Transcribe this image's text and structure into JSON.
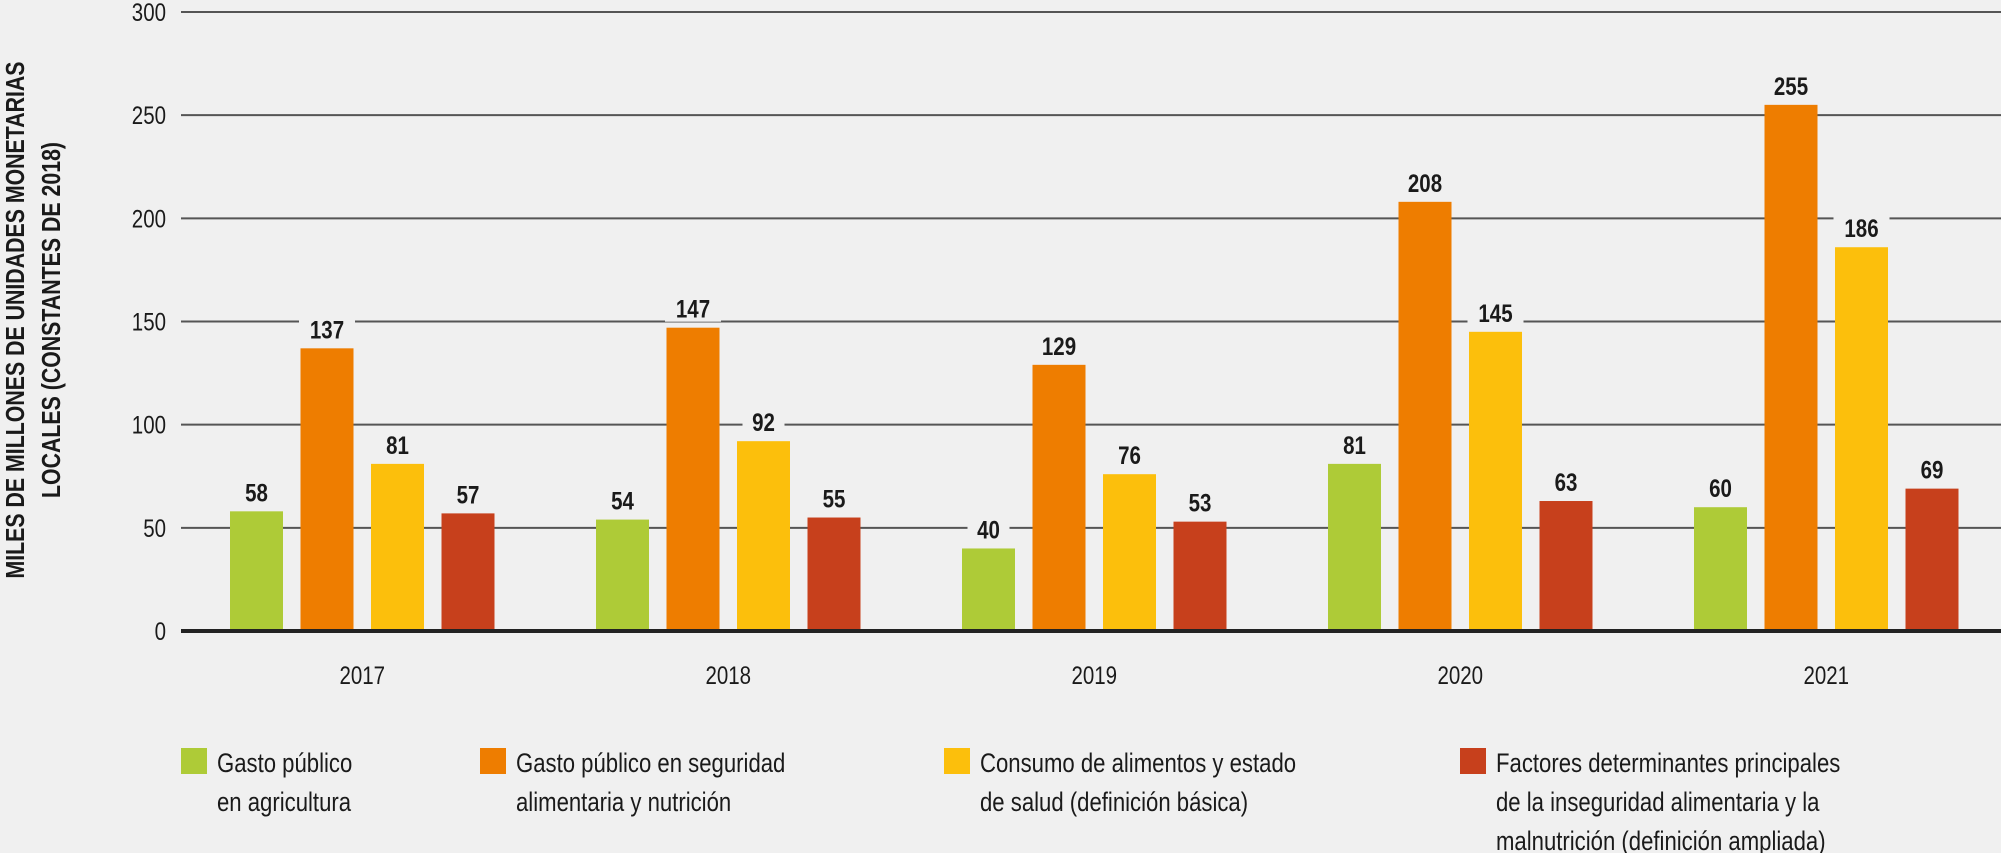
{
  "chart_data": {
    "type": "bar",
    "title": "",
    "xlabel": "",
    "ylabel_lines": [
      "MILES DE MILLONES DE UNIDADES MONETARIAS",
      "LOCALES (CONSTANTES DE 2018)"
    ],
    "ylabel": "MILES DE MILLONES DE UNIDADES MONETARIAS LOCALES (CONSTANTES DE 2018)",
    "ylim": [
      0,
      300
    ],
    "yticks": [
      0,
      50,
      100,
      150,
      200,
      250,
      300
    ],
    "grid": true,
    "legend_position": "bottom",
    "categories": [
      "2017",
      "2018",
      "2019",
      "2020",
      "2021"
    ],
    "series": [
      {
        "name": "Gasto público en agricultura",
        "legend_lines": [
          "Gasto público",
          "en agricultura"
        ],
        "color": "#aecb37",
        "values": [
          58,
          54,
          40,
          81,
          60
        ]
      },
      {
        "name": "Gasto público en seguridad alimentaria y nutrición",
        "legend_lines": [
          "Gasto público en seguridad",
          "alimentaria y nutrición"
        ],
        "color": "#ee7d00",
        "values": [
          137,
          147,
          129,
          208,
          255
        ]
      },
      {
        "name": "Consumo de alimentos y estado de salud (definición básica)",
        "legend_lines": [
          "Consumo de alimentos y estado",
          "de salud (definición básica)"
        ],
        "color": "#fcbf0c",
        "values": [
          81,
          92,
          76,
          145,
          186
        ]
      },
      {
        "name": "Factores determinantes principales de la inseguridad alimentaria y la malnutrición (definición ampliada)",
        "legend_lines": [
          "Factores determinantes principales",
          "de la inseguridad alimentaria y la",
          "malnutrición (definición ampliada)"
        ],
        "color": "#c7401c",
        "values": [
          57,
          55,
          53,
          63,
          69
        ]
      }
    ],
    "background_color": "#f0f0f0"
  }
}
